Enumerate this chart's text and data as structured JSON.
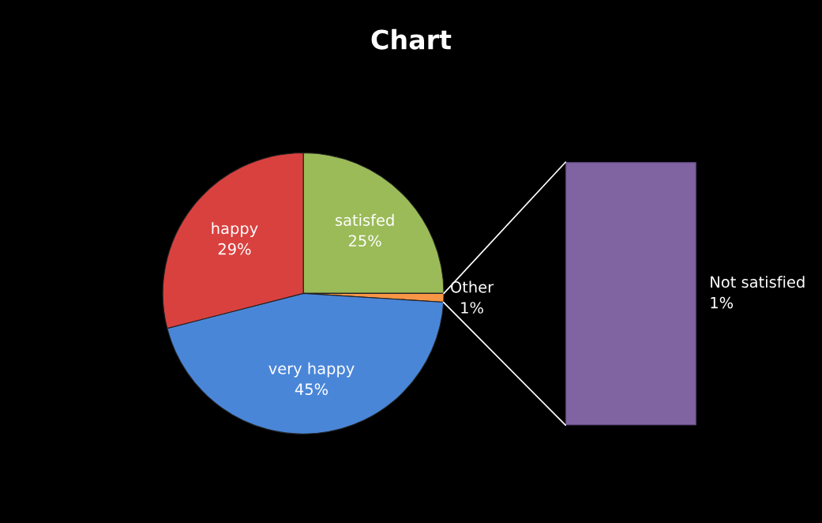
{
  "chart_data": [
    {
      "type": "pie",
      "title": "Chart",
      "categories": [
        "satisfed",
        "Other",
        "very happy",
        "happy"
      ],
      "values": [
        25,
        1,
        45,
        29
      ],
      "value_labels": [
        "25%",
        "1%",
        "45%",
        "29%"
      ],
      "colors": [
        "#9bbb59",
        "#f79646",
        "#4a86d8",
        "#d9413f"
      ]
    },
    {
      "type": "other",
      "categories": [
        "Not satisfied"
      ],
      "series": [
        {
          "color": "#8064a2",
          "values": [
            1
          ],
          "value_labels": [
            "1%"
          ]
        }
      ]
    }
  ]
}
